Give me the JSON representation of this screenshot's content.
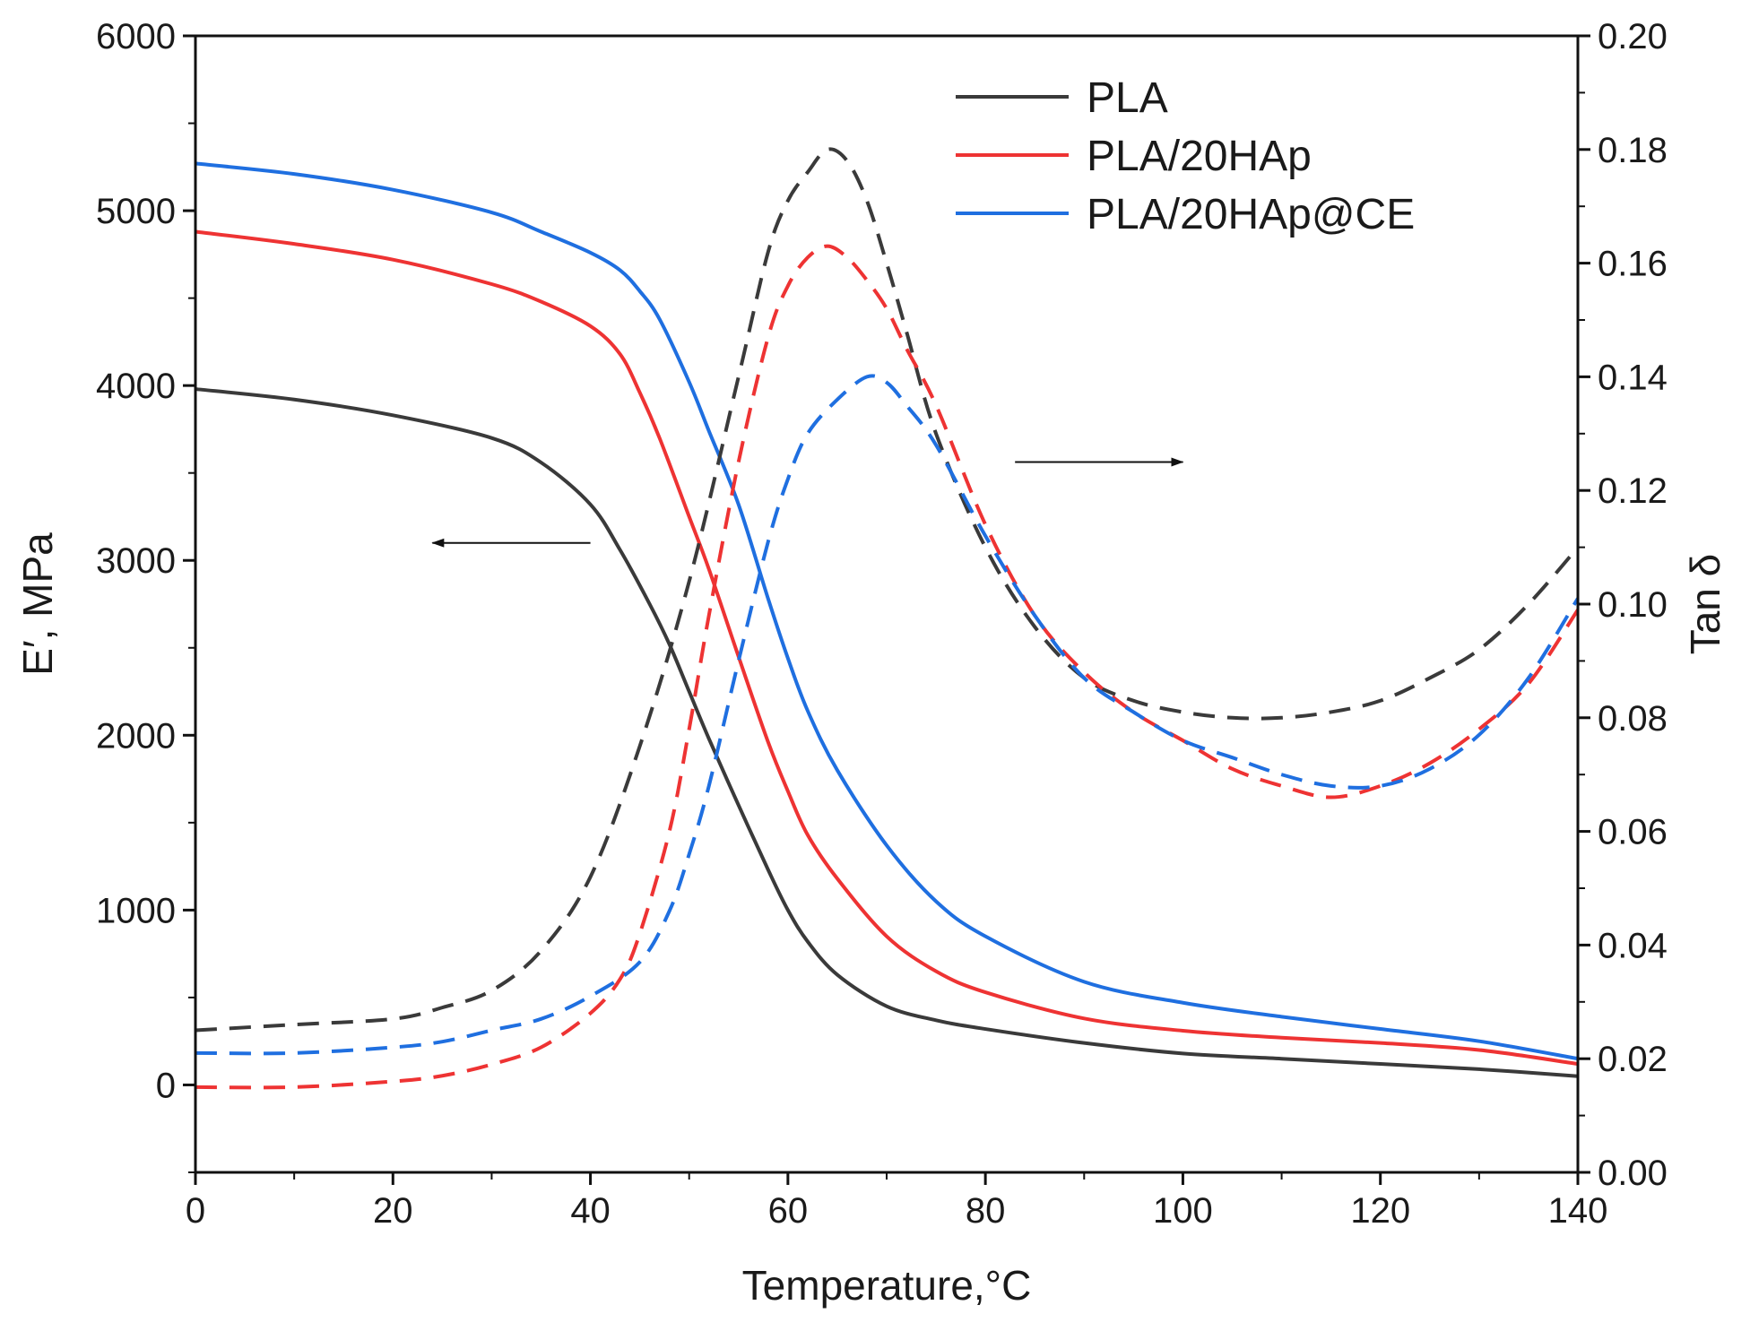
{
  "chart_data": {
    "type": "line",
    "title": "",
    "xlabel": "Temperature,°C",
    "ylabel_left": "E′, MPa",
    "ylabel_right": "Tan δ",
    "xlim": [
      0,
      140
    ],
    "ylim_left": [
      -500,
      6000
    ],
    "ylim_right": [
      0.0,
      0.2
    ],
    "x_ticks": [
      "0",
      "20",
      "40",
      "60",
      "80",
      "100",
      "120",
      "140"
    ],
    "y_left_ticks": [
      "0",
      "1000",
      "2000",
      "3000",
      "4000",
      "5000",
      "6000"
    ],
    "y_right_ticks": [
      "0.00",
      "0.02",
      "0.04",
      "0.06",
      "0.08",
      "0.10",
      "0.12",
      "0.14",
      "0.16",
      "0.18",
      "0.20"
    ],
    "legend_position": "top-right",
    "grid": false,
    "colors": {
      "PLA": "#3a3a3a",
      "PLA/20HAp": "#ee3333",
      "PLA/20HAp@CE": "#1f6fe0"
    },
    "series": [
      {
        "name": "PLA",
        "axis": "left",
        "style": "solid",
        "legend": true,
        "x": [
          0,
          10,
          20,
          30,
          35,
          40,
          43,
          46,
          48,
          50,
          52,
          55,
          58,
          60,
          62,
          65,
          70,
          75,
          80,
          90,
          100,
          110,
          120,
          130,
          140
        ],
        "values": [
          3980,
          3920,
          3830,
          3700,
          3560,
          3320,
          3060,
          2750,
          2520,
          2250,
          1980,
          1600,
          1230,
          1000,
          820,
          630,
          450,
          370,
          320,
          240,
          180,
          150,
          120,
          90,
          50
        ]
      },
      {
        "name": "PLA/20HAp",
        "axis": "left",
        "style": "solid",
        "legend": true,
        "x": [
          0,
          10,
          20,
          30,
          35,
          40,
          43,
          45,
          47,
          50,
          52,
          55,
          58,
          60,
          62,
          65,
          70,
          75,
          80,
          90,
          100,
          110,
          120,
          130,
          140
        ],
        "values": [
          4880,
          4810,
          4720,
          4580,
          4480,
          4340,
          4180,
          3960,
          3700,
          3250,
          2950,
          2450,
          1960,
          1680,
          1430,
          1180,
          850,
          650,
          530,
          380,
          310,
          270,
          240,
          200,
          120
        ]
      },
      {
        "name": "PLA/20HAp@CE",
        "axis": "left",
        "style": "solid",
        "legend": true,
        "x": [
          0,
          10,
          20,
          30,
          35,
          40,
          43,
          45,
          47,
          50,
          52,
          55,
          58,
          60,
          62,
          65,
          70,
          75,
          80,
          90,
          100,
          110,
          120,
          130,
          140
        ],
        "values": [
          5270,
          5210,
          5120,
          4990,
          4880,
          4760,
          4660,
          4540,
          4380,
          4020,
          3740,
          3320,
          2780,
          2440,
          2140,
          1800,
          1370,
          1050,
          850,
          590,
          470,
          390,
          320,
          250,
          150
        ]
      },
      {
        "name": "PLA",
        "axis": "right",
        "style": "dashed",
        "legend": false,
        "x": [
          0,
          10,
          20,
          25,
          30,
          35,
          40,
          45,
          50,
          55,
          58,
          60,
          62,
          64,
          66,
          68,
          70,
          72,
          75,
          80,
          85,
          90,
          95,
          100,
          105,
          110,
          115,
          120,
          125,
          130,
          135,
          140
        ],
        "values": [
          0.025,
          0.026,
          0.027,
          0.029,
          0.032,
          0.039,
          0.052,
          0.075,
          0.104,
          0.14,
          0.162,
          0.171,
          0.176,
          0.18,
          0.178,
          0.171,
          0.16,
          0.148,
          0.13,
          0.11,
          0.096,
          0.087,
          0.083,
          0.081,
          0.08,
          0.08,
          0.081,
          0.083,
          0.087,
          0.092,
          0.1,
          0.11
        ]
      },
      {
        "name": "PLA/20HAp",
        "axis": "right",
        "style": "dashed",
        "legend": false,
        "x": [
          0,
          10,
          20,
          25,
          30,
          35,
          40,
          43,
          45,
          48,
          50,
          52,
          55,
          58,
          60,
          62,
          64,
          66,
          68,
          70,
          72,
          75,
          80,
          85,
          90,
          95,
          100,
          105,
          110,
          115,
          120,
          125,
          130,
          135,
          140
        ],
        "values": [
          0.015,
          0.015,
          0.016,
          0.017,
          0.019,
          0.022,
          0.028,
          0.034,
          0.042,
          0.06,
          0.078,
          0.098,
          0.125,
          0.147,
          0.156,
          0.161,
          0.163,
          0.161,
          0.157,
          0.152,
          0.145,
          0.135,
          0.114,
          0.098,
          0.088,
          0.081,
          0.076,
          0.071,
          0.068,
          0.066,
          0.068,
          0.072,
          0.078,
          0.086,
          0.099
        ]
      },
      {
        "name": "PLA/20HAp@CE",
        "axis": "right",
        "style": "dashed",
        "legend": false,
        "x": [
          0,
          10,
          20,
          25,
          30,
          35,
          40,
          45,
          48,
          50,
          52,
          55,
          58,
          60,
          62,
          65,
          68,
          70,
          72,
          75,
          80,
          85,
          90,
          95,
          100,
          105,
          110,
          115,
          120,
          125,
          130,
          135,
          140
        ],
        "values": [
          0.021,
          0.021,
          0.022,
          0.023,
          0.025,
          0.027,
          0.031,
          0.037,
          0.046,
          0.056,
          0.068,
          0.09,
          0.111,
          0.122,
          0.13,
          0.136,
          0.14,
          0.139,
          0.135,
          0.128,
          0.112,
          0.098,
          0.087,
          0.081,
          0.076,
          0.073,
          0.07,
          0.068,
          0.068,
          0.071,
          0.077,
          0.087,
          0.101
        ]
      }
    ],
    "annotations": [
      {
        "type": "arrow",
        "direction": "left",
        "axis": "left",
        "x_from": 40,
        "x_to": 24,
        "y": 3100
      },
      {
        "type": "arrow",
        "direction": "right",
        "axis": "right",
        "x_from": 83,
        "x_to": 100,
        "y": 0.125
      }
    ]
  }
}
